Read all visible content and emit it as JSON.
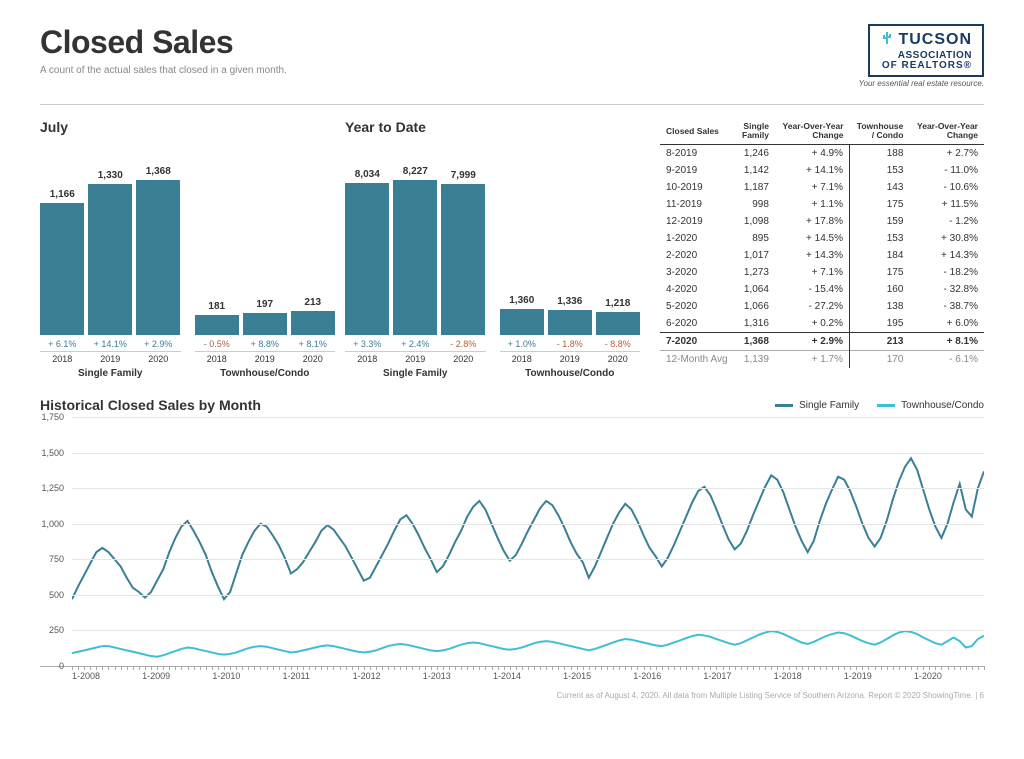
{
  "page": {
    "title": "Closed Sales",
    "subtitle": "A count of the actual sales that closed in a given month.",
    "footer": "Current as of August 4, 2020. All data from Multiple Listing Service of Southern Arizona. Report © 2020 ShowingTime.  |  6"
  },
  "logo": {
    "line1": "TUCSON",
    "line2": "ASSOCIATION",
    "line3": "OF REALTORS®",
    "tagline": "Your essential real estate resource.",
    "border_color": "#1a3a5e",
    "text_color": "#1a3a5e",
    "icon_color": "#3fbfd4"
  },
  "bar_charts": {
    "bar_color": "#3a7f94",
    "pct_pos_color": "#3a7f94",
    "pct_neg_color": "#b85c3a",
    "years": [
      "2018",
      "2019",
      "2020"
    ],
    "groups": [
      {
        "title": "July",
        "max": 1500,
        "subs": [
          {
            "label": "Single Family",
            "values": [
              1166,
              1330,
              1368
            ],
            "pcts": [
              "+ 6.1%",
              "+ 14.1%",
              "+ 2.9%"
            ],
            "signs": [
              "pos",
              "pos",
              "pos"
            ]
          },
          {
            "label": "Townhouse/Condo",
            "values": [
              181,
              197,
              213
            ],
            "pcts": [
              "- 0.5%",
              "+ 8.8%",
              "+ 8.1%"
            ],
            "signs": [
              "neg",
              "pos",
              "pos"
            ]
          }
        ]
      },
      {
        "title": "Year to Date",
        "max": 9000,
        "subs": [
          {
            "label": "Single Family",
            "values": [
              8034,
              8227,
              7999
            ],
            "pcts": [
              "+ 3.3%",
              "+ 2.4%",
              "- 2.8%"
            ],
            "signs": [
              "pos",
              "pos",
              "neg"
            ]
          },
          {
            "label": "Townhouse/Condo",
            "values": [
              1360,
              1336,
              1218
            ],
            "pcts": [
              "+ 1.0%",
              "- 1.8%",
              "- 8.8%"
            ],
            "signs": [
              "pos",
              "neg",
              "neg"
            ]
          }
        ]
      }
    ]
  },
  "table": {
    "headers": [
      "Closed Sales",
      "Single\nFamily",
      "Year-Over-Year\nChange",
      "Townhouse\n/ Condo",
      "Year-Over-Year\nChange"
    ],
    "rows": [
      [
        "8-2019",
        "1,246",
        "+ 4.9%",
        "188",
        "+ 2.7%"
      ],
      [
        "9-2019",
        "1,142",
        "+ 14.1%",
        "153",
        "- 11.0%"
      ],
      [
        "10-2019",
        "1,187",
        "+ 7.1%",
        "143",
        "- 10.6%"
      ],
      [
        "11-2019",
        "998",
        "+ 1.1%",
        "175",
        "+ 11.5%"
      ],
      [
        "12-2019",
        "1,098",
        "+ 17.8%",
        "159",
        "- 1.2%"
      ],
      [
        "1-2020",
        "895",
        "+ 14.5%",
        "153",
        "+ 30.8%"
      ],
      [
        "2-2020",
        "1,017",
        "+ 14.3%",
        "184",
        "+ 14.3%"
      ],
      [
        "3-2020",
        "1,273",
        "+ 7.1%",
        "175",
        "- 18.2%"
      ],
      [
        "4-2020",
        "1,064",
        "- 15.4%",
        "160",
        "- 32.8%"
      ],
      [
        "5-2020",
        "1,066",
        "- 27.2%",
        "138",
        "- 38.7%"
      ],
      [
        "6-2020",
        "1,316",
        "+ 0.2%",
        "195",
        "+ 6.0%"
      ]
    ],
    "bold_row": [
      "7-2020",
      "1,368",
      "+ 2.9%",
      "213",
      "+ 8.1%"
    ],
    "avg_row": [
      "12-Month Avg",
      "1,139",
      "+ 1.7%",
      "170",
      "- 6.1%"
    ]
  },
  "line_chart": {
    "title": "Historical Closed Sales by Month",
    "ylim": [
      0,
      1750
    ],
    "ytick_step": 250,
    "x_start_year": 2008,
    "x_end_year_fraction": 2020.58,
    "x_labels": [
      "1-2008",
      "1-2009",
      "1-2010",
      "1-2011",
      "1-2012",
      "1-2013",
      "1-2014",
      "1-2015",
      "1-2016",
      "1-2017",
      "1-2018",
      "1-2019",
      "1-2020"
    ],
    "series": [
      {
        "name": "Single Family",
        "color": "#3a7f94",
        "width": 2,
        "values": [
          470,
          560,
          640,
          720,
          800,
          830,
          800,
          750,
          700,
          620,
          550,
          520,
          480,
          520,
          600,
          680,
          800,
          900,
          980,
          1020,
          950,
          870,
          780,
          660,
          560,
          470,
          520,
          650,
          780,
          870,
          950,
          1000,
          980,
          920,
          850,
          760,
          650,
          680,
          730,
          800,
          870,
          950,
          990,
          960,
          900,
          840,
          760,
          680,
          600,
          620,
          700,
          780,
          860,
          950,
          1030,
          1060,
          1000,
          920,
          830,
          750,
          660,
          700,
          780,
          870,
          950,
          1050,
          1120,
          1160,
          1100,
          1000,
          900,
          810,
          740,
          780,
          860,
          950,
          1030,
          1110,
          1160,
          1130,
          1060,
          970,
          870,
          790,
          730,
          620,
          700,
          800,
          900,
          1000,
          1080,
          1140,
          1100,
          1020,
          920,
          830,
          770,
          700,
          760,
          850,
          950,
          1050,
          1150,
          1230,
          1260,
          1200,
          1100,
          990,
          890,
          820,
          860,
          950,
          1060,
          1160,
          1260,
          1340,
          1310,
          1220,
          1100,
          980,
          880,
          800,
          880,
          1020,
          1140,
          1240,
          1330,
          1310,
          1230,
          1120,
          1000,
          900,
          840,
          900,
          1020,
          1170,
          1300,
          1400,
          1460,
          1380,
          1240,
          1100,
          980,
          900,
          1000,
          1150,
          1280,
          1100,
          1050,
          1250,
          1368
        ]
      },
      {
        "name": "Townhouse/Condo",
        "color": "#3fbfd4",
        "width": 2,
        "values": [
          90,
          100,
          110,
          120,
          130,
          140,
          140,
          130,
          120,
          110,
          100,
          90,
          80,
          70,
          65,
          75,
          90,
          105,
          120,
          130,
          125,
          115,
          105,
          95,
          85,
          80,
          85,
          95,
          110,
          125,
          135,
          140,
          135,
          125,
          115,
          105,
          95,
          100,
          110,
          120,
          130,
          140,
          145,
          140,
          130,
          120,
          110,
          100,
          95,
          100,
          110,
          125,
          140,
          150,
          155,
          150,
          140,
          130,
          120,
          110,
          105,
          110,
          120,
          135,
          150,
          160,
          165,
          160,
          150,
          140,
          130,
          120,
          115,
          120,
          130,
          145,
          160,
          170,
          175,
          170,
          160,
          150,
          140,
          130,
          120,
          110,
          120,
          135,
          150,
          165,
          180,
          190,
          185,
          175,
          165,
          155,
          145,
          140,
          150,
          165,
          180,
          195,
          210,
          220,
          215,
          205,
          190,
          175,
          160,
          150,
          160,
          180,
          200,
          220,
          235,
          245,
          240,
          225,
          205,
          185,
          165,
          155,
          170,
          190,
          210,
          225,
          235,
          230,
          215,
          195,
          175,
          160,
          150,
          165,
          190,
          215,
          235,
          245,
          240,
          225,
          200,
          180,
          160,
          150,
          175,
          200,
          175,
          130,
          140,
          190,
          213
        ]
      }
    ]
  }
}
